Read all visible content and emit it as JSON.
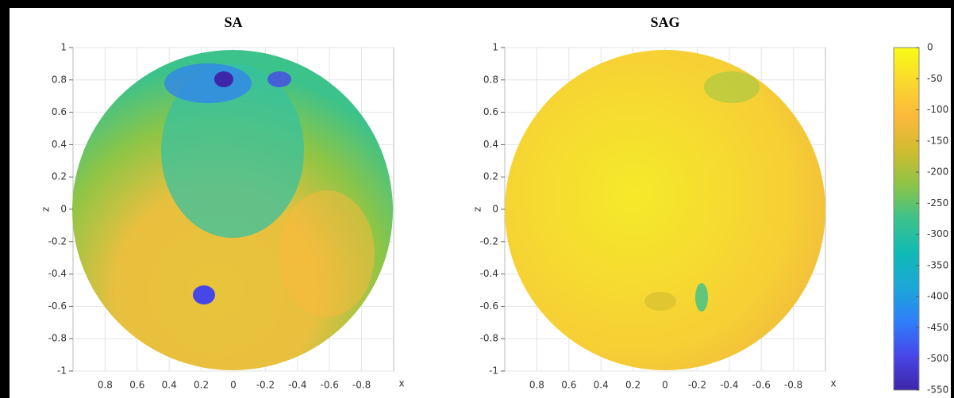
{
  "chart_data": [
    {
      "type": "sphere-surface",
      "title": "SA",
      "xlabel": "x",
      "ylabel": "z",
      "xlim": [
        1,
        -1
      ],
      "xticks": [
        0.8,
        0.6,
        0.4,
        0.2,
        0,
        -0.2,
        -0.4,
        -0.6,
        -0.8
      ],
      "ylim": [
        -1,
        1
      ],
      "yticks": [
        1,
        0.8,
        0.6,
        0.4,
        0.2,
        0,
        -0.2,
        -0.4,
        -0.6,
        -0.8,
        -1
      ],
      "grid": true
    },
    {
      "type": "sphere-surface",
      "title": "SAG",
      "xlabel": "x",
      "ylabel": "z",
      "xlim": [
        1,
        -1
      ],
      "xticks": [
        0.8,
        0.6,
        0.4,
        0.2,
        0,
        -0.2,
        -0.4,
        -0.6,
        -0.8
      ],
      "ylim": [
        -1,
        1
      ],
      "yticks": [
        1,
        0.8,
        0.6,
        0.4,
        0.2,
        0,
        -0.2,
        -0.4,
        -0.6,
        -0.8,
        -1
      ],
      "grid": true
    }
  ],
  "colorbar": {
    "lim": [
      -550,
      0
    ],
    "ticks": [
      0,
      -50,
      -100,
      -150,
      -200,
      -250,
      -300,
      -350,
      -400,
      -450,
      -500,
      -550
    ],
    "colors": [
      "#3e26a8",
      "#4746e8",
      "#2f7efa",
      "#1ca7d8",
      "#0fbab5",
      "#3cc28b",
      "#8dc546",
      "#d2bb2f",
      "#fcb93b",
      "#fad92d",
      "#f9fb15"
    ]
  }
}
